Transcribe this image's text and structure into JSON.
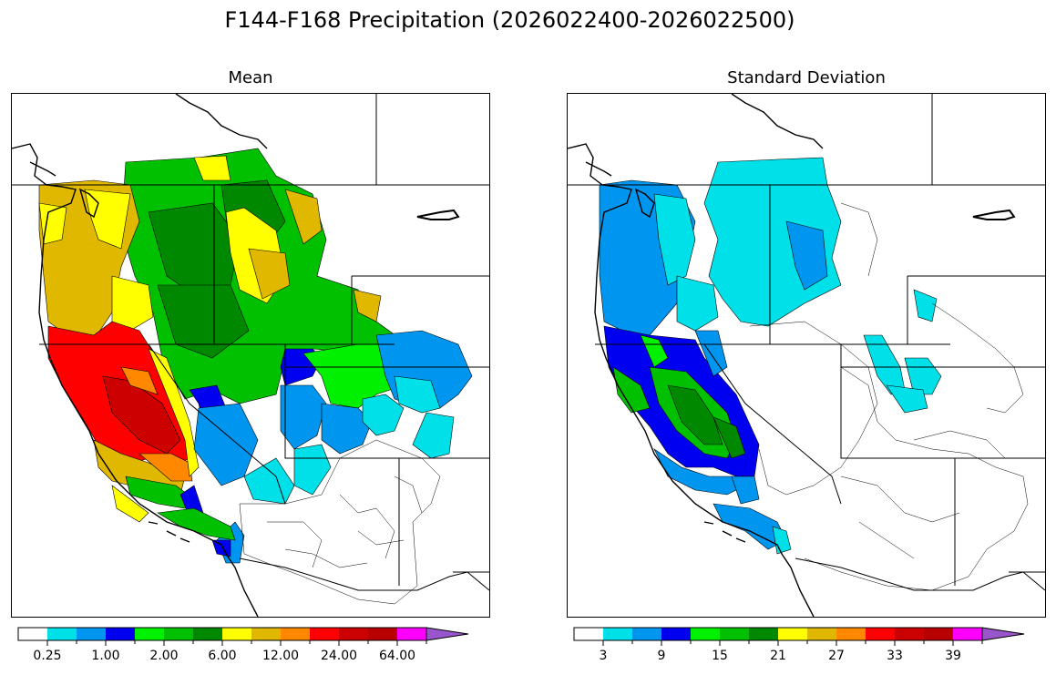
{
  "title": "F144-F168 Precipitation (2026022400-2026022500)",
  "panels": [
    {
      "title": "Mean",
      "colorbar": {
        "colors": [
          "#ffffff",
          "#00e0e8",
          "#0096f0",
          "#0000f0",
          "#00f000",
          "#00c000",
          "#008800",
          "#ffff00",
          "#e0b800",
          "#ff8800",
          "#ff0000",
          "#cc0000",
          "#b80000",
          "#ff00ff",
          "#9955cc"
        ],
        "tick_labels": [
          "0.25",
          "1.00",
          "2.00",
          "6.00",
          "12.00",
          "24.00",
          "64.00"
        ]
      }
    },
    {
      "title": "Standard Deviation",
      "colorbar": {
        "colors": [
          "#ffffff",
          "#00e0e8",
          "#0096f0",
          "#0000f0",
          "#00f000",
          "#00c000",
          "#008800",
          "#ffff00",
          "#e0b800",
          "#ff8800",
          "#ff0000",
          "#cc0000",
          "#b80000",
          "#ff00ff",
          "#9955cc"
        ],
        "tick_labels": [
          "3",
          "9",
          "15",
          "21",
          "27",
          "33",
          "39"
        ]
      }
    }
  ]
}
